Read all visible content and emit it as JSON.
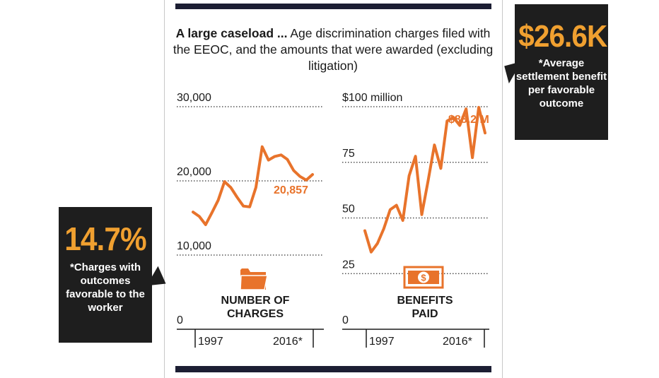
{
  "headline": {
    "bold": "A large caseload ...",
    "text": " Age discrimination charges filed with the EEOC, and the amounts that were awarded (excluding litigation)"
  },
  "callouts": {
    "settlement": {
      "value": "$26.6K",
      "text": "*Average settlement benefit per favorable outcome"
    },
    "favorable": {
      "value": "14.7%",
      "text": "*Charges with outcomes favorable to the worker"
    }
  },
  "icons": {
    "charges": "folder-icon",
    "benefits": "money-bill-icon"
  },
  "colors": {
    "line": "#e8732b",
    "accent": "#f0a030",
    "dark": "#1e1e1e",
    "bar": "#1c1e33"
  },
  "chart_data": [
    {
      "type": "line",
      "title": "NUMBER OF CHARGES",
      "title_lines": [
        "NUMBER OF",
        "CHARGES"
      ],
      "x": [
        1997,
        1998,
        1999,
        2000,
        2001,
        2002,
        2003,
        2004,
        2005,
        2006,
        2007,
        2008,
        2009,
        2010,
        2011,
        2012,
        2013,
        2014,
        2015,
        2016
      ],
      "values": [
        15800,
        15200,
        14100,
        15700,
        17400,
        19900,
        19100,
        17800,
        16600,
        16500,
        19100,
        24600,
        22800,
        23300,
        23500,
        22900,
        21400,
        20600,
        20100,
        20857
      ],
      "ylim": [
        0,
        30000
      ],
      "yticks": [
        0,
        10000,
        20000,
        30000
      ],
      "ytick_labels": [
        "0",
        "10,000",
        "20,000",
        "30,000"
      ],
      "xtick_labels": [
        "1997",
        "2016*"
      ],
      "annotation": {
        "label": "20,857",
        "x": 2016,
        "y": 20857
      }
    },
    {
      "type": "line",
      "title": "BENEFITS PAID",
      "title_lines": [
        "BENEFITS",
        "PAID"
      ],
      "x": [
        1997,
        1998,
        1999,
        2000,
        2001,
        2002,
        2003,
        2004,
        2005,
        2006,
        2007,
        2008,
        2009,
        2010,
        2011,
        2012,
        2013,
        2014,
        2015,
        2016
      ],
      "values": [
        44.3,
        34.7,
        38.6,
        45.2,
        53.7,
        55.7,
        48.9,
        69.0,
        77.7,
        51.5,
        66.8,
        82.8,
        72.3,
        93.6,
        95.2,
        91.6,
        99.0,
        77.1,
        99.7,
        88.2
      ],
      "ylim": [
        0,
        100
      ],
      "yticks": [
        0,
        25,
        50,
        75,
        100
      ],
      "ytick_labels": [
        "0",
        "25",
        "50",
        "75",
        "$100 million"
      ],
      "xtick_labels": [
        "1997",
        "2016*"
      ],
      "annotation": {
        "label": "$88.2 M",
        "x": 2016,
        "y": 88.2
      }
    }
  ]
}
